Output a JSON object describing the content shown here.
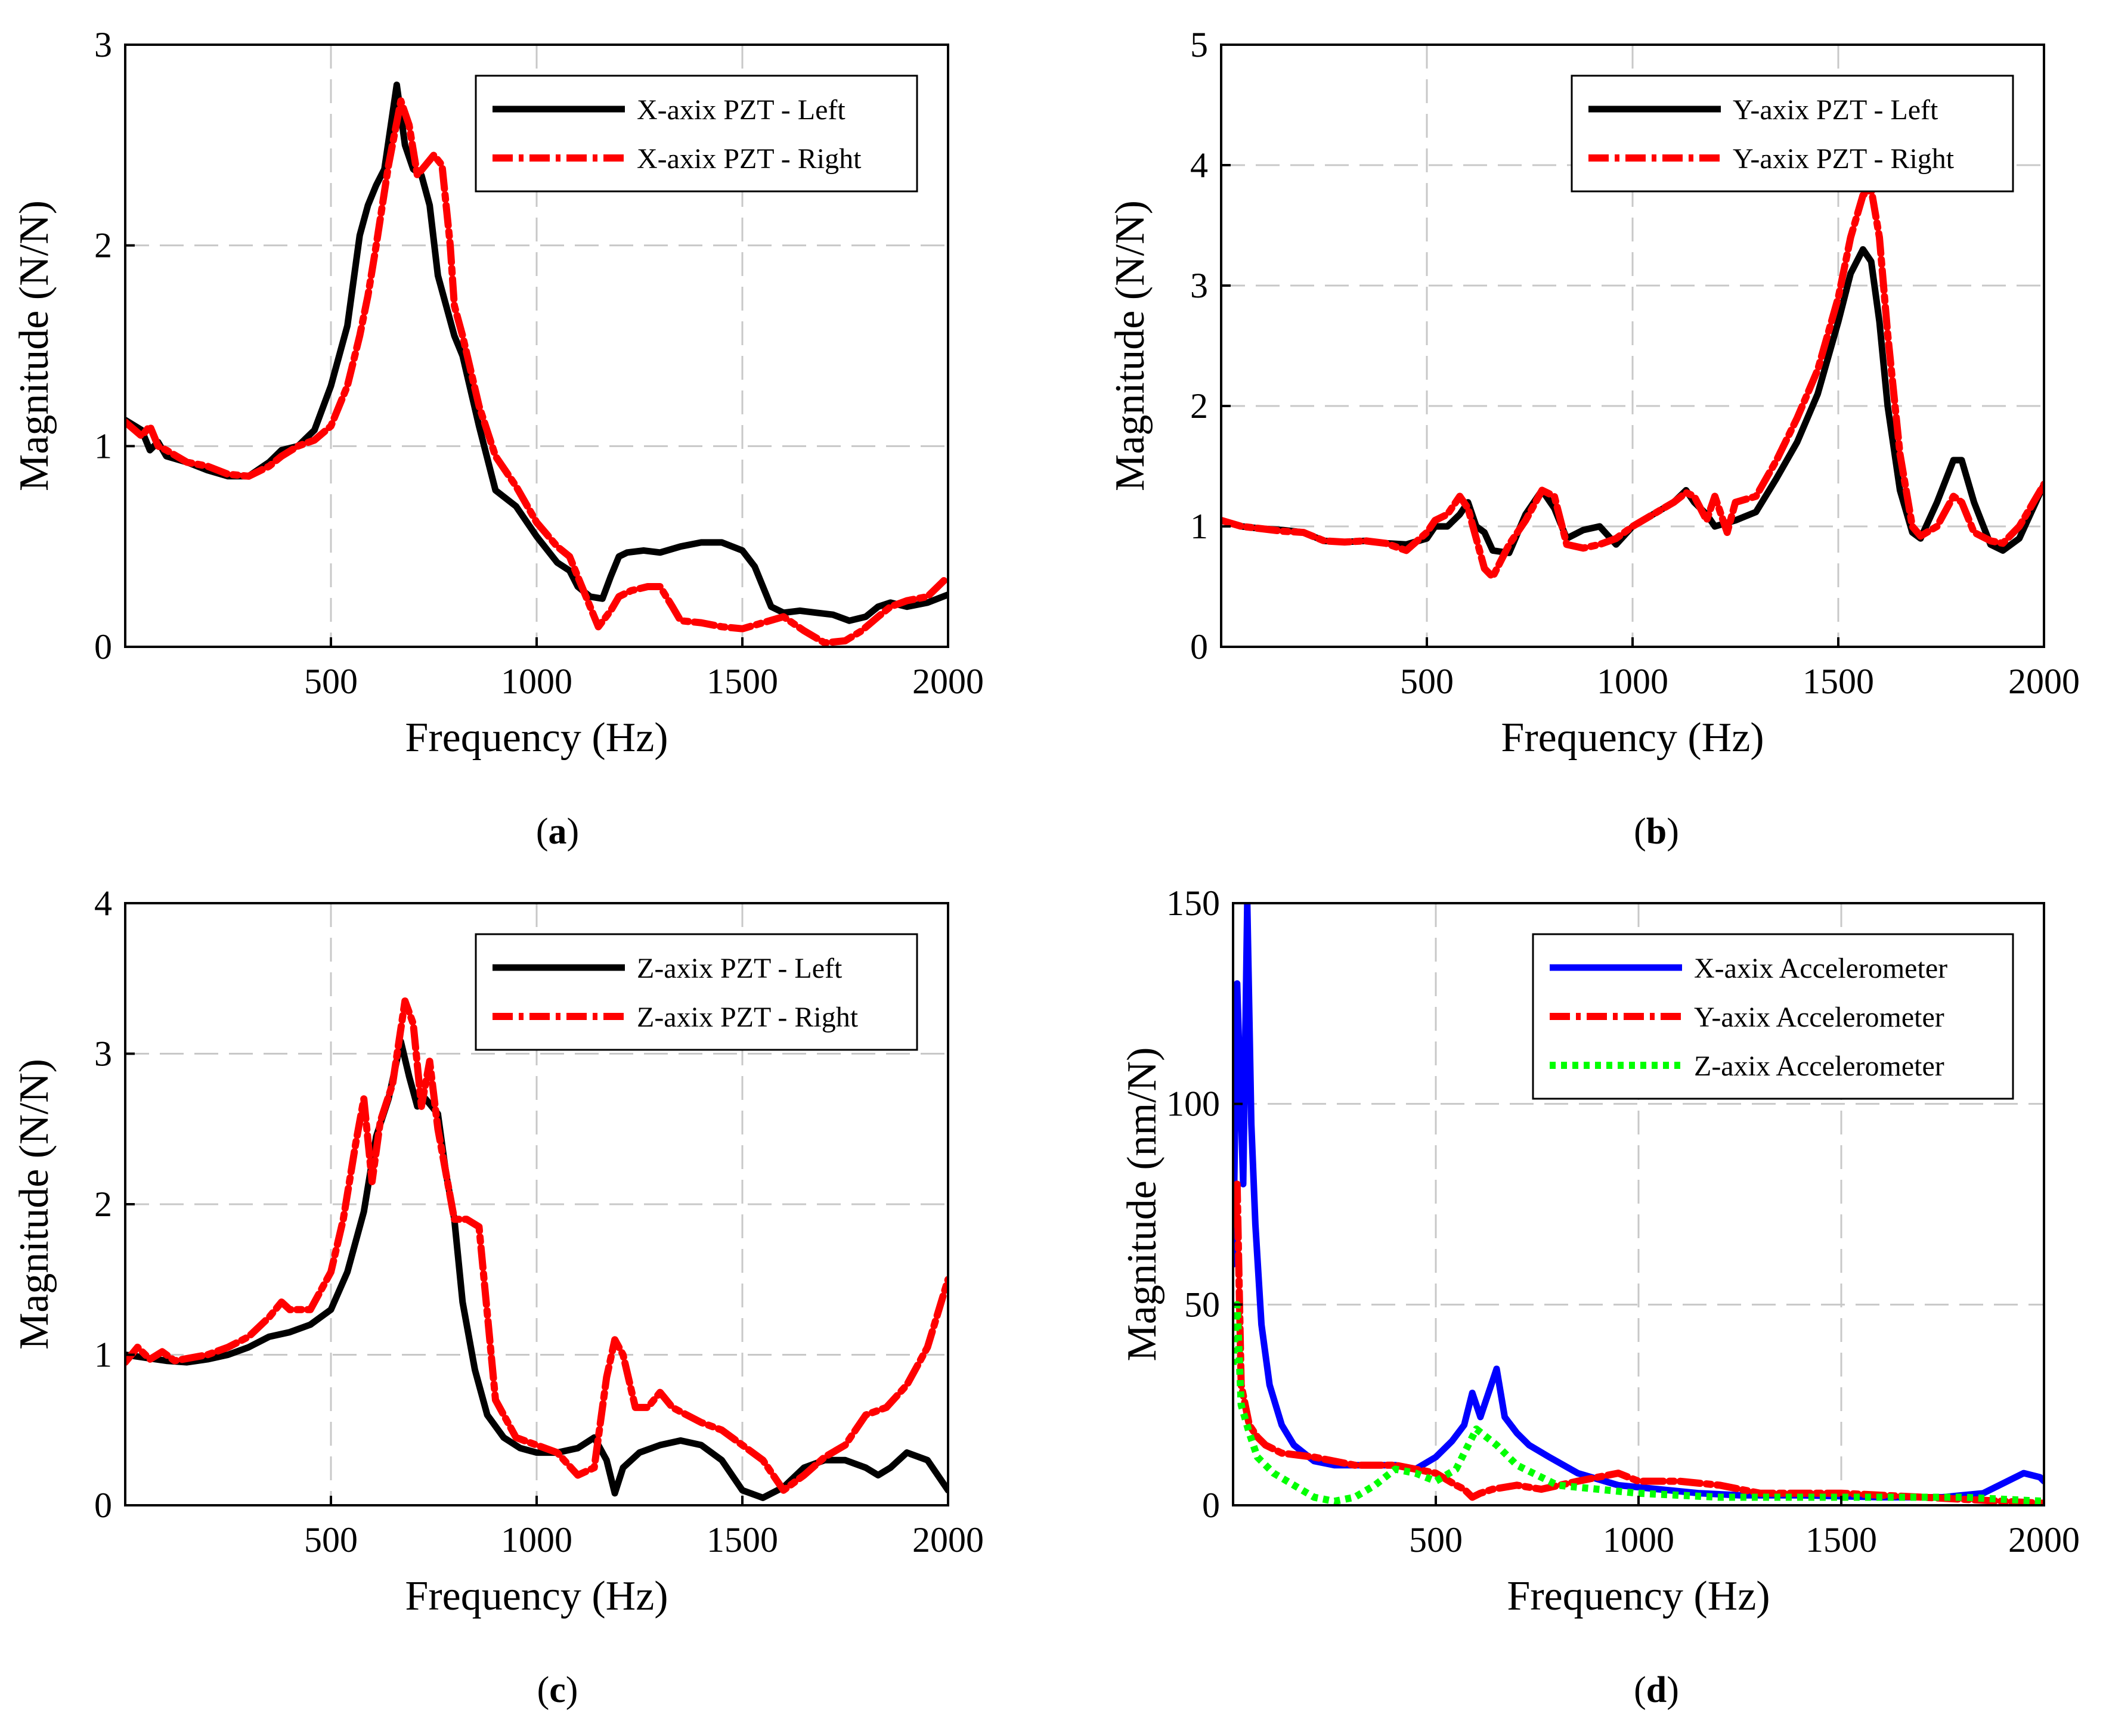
{
  "chart_data": [
    {
      "type": "line",
      "panel_label": "a",
      "xlabel": "Frequency (Hz)",
      "ylabel": "Magnitude (N/N)",
      "xlim": [
        0,
        2000
      ],
      "ylim": [
        0,
        3
      ],
      "xticks": [
        500,
        1000,
        1500,
        2000
      ],
      "yticks": [
        0,
        1,
        2,
        3
      ],
      "grid": true,
      "legend_position": "top-right",
      "series": [
        {
          "name": "X-axix PZT - Left",
          "color": "#000000",
          "style": "solid",
          "x": [
            0,
            40,
            60,
            80,
            100,
            150,
            200,
            250,
            300,
            350,
            380,
            420,
            460,
            500,
            540,
            570,
            590,
            610,
            630,
            660,
            680,
            700,
            720,
            740,
            760,
            780,
            800,
            820,
            860,
            900,
            950,
            1000,
            1050,
            1080,
            1100,
            1130,
            1160,
            1180,
            1200,
            1220,
            1260,
            1300,
            1350,
            1400,
            1450,
            1500,
            1530,
            1570,
            1600,
            1640,
            1680,
            1720,
            1760,
            1800,
            1830,
            1860,
            1900,
            1950,
            2000
          ],
          "y": [
            1.13,
            1.08,
            0.98,
            1.02,
            0.95,
            0.92,
            0.88,
            0.85,
            0.85,
            0.92,
            0.98,
            1.0,
            1.08,
            1.3,
            1.6,
            2.05,
            2.2,
            2.3,
            2.38,
            2.8,
            2.5,
            2.38,
            2.35,
            2.2,
            1.85,
            1.7,
            1.55,
            1.45,
            1.1,
            0.78,
            0.7,
            0.55,
            0.42,
            0.38,
            0.3,
            0.25,
            0.24,
            0.35,
            0.45,
            0.47,
            0.48,
            0.47,
            0.5,
            0.52,
            0.52,
            0.48,
            0.4,
            0.2,
            0.17,
            0.18,
            0.17,
            0.16,
            0.13,
            0.15,
            0.2,
            0.22,
            0.2,
            0.22,
            0.26
          ]
        },
        {
          "name": "X-axix PZT - Right",
          "color": "#ff0000",
          "style": "dashdot",
          "x": [
            0,
            40,
            60,
            80,
            100,
            150,
            200,
            250,
            300,
            350,
            380,
            420,
            460,
            500,
            540,
            570,
            590,
            610,
            640,
            670,
            690,
            710,
            730,
            750,
            770,
            790,
            800,
            820,
            860,
            900,
            950,
            1000,
            1050,
            1080,
            1100,
            1130,
            1150,
            1180,
            1200,
            1230,
            1270,
            1300,
            1330,
            1350,
            1400,
            1450,
            1500,
            1550,
            1600,
            1650,
            1700,
            1750,
            1790,
            1830,
            1860,
            1900,
            1950,
            2000
          ],
          "y": [
            1.12,
            1.05,
            1.1,
            1.0,
            0.98,
            0.92,
            0.9,
            0.86,
            0.85,
            0.9,
            0.95,
            1.0,
            1.03,
            1.1,
            1.3,
            1.55,
            1.75,
            2.0,
            2.4,
            2.72,
            2.6,
            2.35,
            2.4,
            2.45,
            2.4,
            2.0,
            1.7,
            1.55,
            1.2,
            0.95,
            0.8,
            0.62,
            0.5,
            0.45,
            0.35,
            0.2,
            0.1,
            0.18,
            0.25,
            0.28,
            0.3,
            0.3,
            0.2,
            0.13,
            0.12,
            0.1,
            0.09,
            0.12,
            0.15,
            0.08,
            0.02,
            0.03,
            0.08,
            0.15,
            0.2,
            0.23,
            0.25,
            0.35
          ]
        }
      ]
    },
    {
      "type": "line",
      "panel_label": "b",
      "xlabel": "Frequency (Hz)",
      "ylabel": "Magnitude (N/N)",
      "xlim": [
        0,
        2000
      ],
      "ylim": [
        0,
        5
      ],
      "xticks": [
        500,
        1000,
        1500,
        2000
      ],
      "yticks": [
        0,
        1,
        2,
        3,
        4,
        5
      ],
      "grid": true,
      "legend_position": "top-right",
      "series": [
        {
          "name": "Y-axix PZT - Left",
          "color": "#000000",
          "style": "solid",
          "x": [
            0,
            50,
            100,
            150,
            200,
            250,
            300,
            350,
            400,
            450,
            500,
            520,
            550,
            580,
            600,
            620,
            640,
            660,
            700,
            740,
            780,
            810,
            840,
            880,
            920,
            960,
            1000,
            1050,
            1100,
            1130,
            1150,
            1180,
            1200,
            1250,
            1300,
            1350,
            1400,
            1450,
            1500,
            1530,
            1560,
            1580,
            1600,
            1620,
            1650,
            1680,
            1700,
            1740,
            1780,
            1800,
            1830,
            1870,
            1900,
            1940,
            2000
          ],
          "y": [
            1.05,
            1.0,
            0.98,
            0.97,
            0.95,
            0.88,
            0.87,
            0.88,
            0.86,
            0.85,
            0.9,
            1.0,
            1.0,
            1.1,
            1.2,
            1.0,
            0.95,
            0.8,
            0.78,
            1.1,
            1.3,
            1.15,
            0.9,
            0.97,
            1.0,
            0.85,
            1.0,
            1.1,
            1.2,
            1.3,
            1.2,
            1.1,
            1.0,
            1.05,
            1.12,
            1.4,
            1.7,
            2.1,
            2.7,
            3.1,
            3.3,
            3.2,
            2.7,
            2.0,
            1.3,
            0.95,
            0.9,
            1.2,
            1.55,
            1.55,
            1.2,
            0.85,
            0.8,
            0.9,
            1.35
          ]
        },
        {
          "name": "Y-axix PZT - Right",
          "color": "#ff0000",
          "style": "dashdot",
          "x": [
            0,
            50,
            100,
            150,
            200,
            250,
            300,
            350,
            400,
            450,
            500,
            520,
            550,
            580,
            600,
            620,
            640,
            660,
            700,
            740,
            780,
            810,
            840,
            880,
            920,
            960,
            1000,
            1050,
            1100,
            1130,
            1150,
            1180,
            1200,
            1230,
            1250,
            1300,
            1350,
            1400,
            1450,
            1500,
            1530,
            1560,
            1580,
            1600,
            1620,
            1650,
            1680,
            1700,
            1740,
            1780,
            1800,
            1830,
            1870,
            1900,
            1940,
            2000
          ],
          "y": [
            1.05,
            1.0,
            0.98,
            0.96,
            0.95,
            0.88,
            0.87,
            0.88,
            0.86,
            0.8,
            0.95,
            1.05,
            1.1,
            1.25,
            1.15,
            0.9,
            0.65,
            0.58,
            0.85,
            1.05,
            1.3,
            1.25,
            0.85,
            0.82,
            0.85,
            0.9,
            1.0,
            1.1,
            1.2,
            1.28,
            1.25,
            1.05,
            1.25,
            0.95,
            1.2,
            1.25,
            1.55,
            1.9,
            2.3,
            2.9,
            3.4,
            3.75,
            3.8,
            3.4,
            2.6,
            1.6,
            1.0,
            0.92,
            1.0,
            1.25,
            1.2,
            0.95,
            0.88,
            0.86,
            1.0,
            1.35
          ]
        }
      ]
    },
    {
      "type": "line",
      "panel_label": "c",
      "xlabel": "Frequency (Hz)",
      "ylabel": "Magnitude (N/N)",
      "xlim": [
        0,
        2000
      ],
      "ylim": [
        0,
        4
      ],
      "xticks": [
        500,
        1000,
        1500,
        2000
      ],
      "yticks": [
        0,
        1,
        2,
        3,
        4
      ],
      "grid": true,
      "legend_position": "top-right",
      "series": [
        {
          "name": "Z-axix PZT - Left",
          "color": "#000000",
          "style": "solid",
          "x": [
            0,
            50,
            100,
            150,
            200,
            250,
            300,
            350,
            400,
            450,
            500,
            540,
            580,
            610,
            640,
            670,
            690,
            710,
            730,
            760,
            780,
            800,
            820,
            850,
            880,
            920,
            960,
            1000,
            1050,
            1100,
            1140,
            1170,
            1190,
            1210,
            1250,
            1300,
            1350,
            1400,
            1450,
            1500,
            1550,
            1600,
            1650,
            1700,
            1750,
            1800,
            1830,
            1860,
            1900,
            1950,
            2000
          ],
          "y": [
            1.0,
            0.98,
            0.96,
            0.95,
            0.97,
            1.0,
            1.05,
            1.12,
            1.15,
            1.2,
            1.3,
            1.55,
            1.95,
            2.45,
            2.7,
            3.08,
            2.85,
            2.65,
            2.7,
            2.6,
            2.2,
            1.9,
            1.35,
            0.9,
            0.6,
            0.45,
            0.38,
            0.35,
            0.35,
            0.38,
            0.45,
            0.3,
            0.08,
            0.25,
            0.35,
            0.4,
            0.43,
            0.4,
            0.3,
            0.1,
            0.05,
            0.12,
            0.25,
            0.3,
            0.3,
            0.25,
            0.2,
            0.25,
            0.35,
            0.3,
            0.1
          ]
        },
        {
          "name": "Z-axix PZT - Right",
          "color": "#ff0000",
          "style": "dashdot",
          "x": [
            0,
            30,
            60,
            90,
            120,
            200,
            250,
            300,
            350,
            380,
            400,
            450,
            500,
            530,
            560,
            580,
            600,
            620,
            650,
            680,
            700,
            720,
            740,
            760,
            780,
            800,
            830,
            860,
            900,
            950,
            1000,
            1050,
            1100,
            1140,
            1170,
            1190,
            1210,
            1240,
            1270,
            1300,
            1330,
            1400,
            1450,
            1500,
            1550,
            1600,
            1650,
            1700,
            1750,
            1800,
            1850,
            1900,
            1950,
            2000
          ],
          "y": [
            0.95,
            1.05,
            0.97,
            1.02,
            0.96,
            1.0,
            1.05,
            1.12,
            1.25,
            1.35,
            1.3,
            1.3,
            1.55,
            1.9,
            2.4,
            2.7,
            2.15,
            2.55,
            2.8,
            3.35,
            3.2,
            2.65,
            2.95,
            2.5,
            2.2,
            1.9,
            1.9,
            1.85,
            0.7,
            0.45,
            0.4,
            0.35,
            0.2,
            0.25,
            0.85,
            1.1,
            1.0,
            0.65,
            0.65,
            0.75,
            0.65,
            0.55,
            0.5,
            0.4,
            0.3,
            0.1,
            0.2,
            0.32,
            0.4,
            0.6,
            0.65,
            0.8,
            1.05,
            1.5
          ]
        }
      ]
    },
    {
      "type": "line",
      "panel_label": "d",
      "xlabel": "Frequency (Hz)",
      "ylabel": "Magnitude (nm/N)",
      "xlim": [
        0,
        2000
      ],
      "ylim": [
        0,
        150
      ],
      "xticks": [
        500,
        1000,
        1500,
        2000
      ],
      "yticks": [
        0,
        50,
        100,
        150
      ],
      "grid": true,
      "legend_position": "top-right",
      "series": [
        {
          "name": "X-axix Accelerometer",
          "color": "#0000ff",
          "style": "solid",
          "x": [
            0,
            10,
            25,
            35,
            45,
            55,
            70,
            90,
            120,
            150,
            200,
            250,
            300,
            400,
            450,
            500,
            540,
            570,
            590,
            610,
            630,
            650,
            670,
            700,
            730,
            780,
            850,
            950,
            1050,
            1150,
            1250,
            1400,
            1600,
            1750,
            1850,
            1950,
            1990,
            2000
          ],
          "y": [
            60,
            130,
            80,
            150,
            95,
            70,
            45,
            30,
            20,
            15,
            11,
            10,
            10,
            10,
            9,
            12,
            16,
            20,
            28,
            22,
            28,
            34,
            22,
            18,
            15,
            12,
            8,
            5,
            4,
            3,
            2.5,
            2.5,
            2,
            2,
            3,
            8,
            7,
            6
          ]
        },
        {
          "name": "Y-axix Accelerometer",
          "color": "#ff0000",
          "style": "dashdot",
          "x": [
            0,
            10,
            20,
            40,
            60,
            80,
            120,
            200,
            300,
            400,
            450,
            500,
            550,
            570,
            590,
            610,
            640,
            700,
            760,
            850,
            950,
            1000,
            1100,
            1200,
            1300,
            1500,
            1700,
            1900,
            2000
          ],
          "y": [
            70,
            80,
            30,
            20,
            17,
            15,
            13,
            12,
            10,
            10,
            9,
            8,
            5,
            4,
            2,
            3,
            4,
            5,
            4,
            6,
            8,
            6,
            6,
            5,
            3,
            3,
            2,
            1,
            0.5
          ]
        },
        {
          "name": "Z-axix Accelerometer",
          "color": "#00ff00",
          "style": "dotted",
          "x": [
            0,
            10,
            20,
            40,
            60,
            100,
            150,
            200,
            250,
            300,
            350,
            400,
            450,
            500,
            550,
            600,
            650,
            700,
            800,
            1000,
            1200,
            1500,
            1800,
            2000
          ],
          "y": [
            35,
            50,
            25,
            18,
            12,
            8,
            5,
            2,
            1,
            2,
            5,
            9,
            8,
            6,
            9,
            19,
            15,
            10,
            5,
            3,
            2,
            2,
            2,
            1
          ]
        }
      ]
    }
  ]
}
